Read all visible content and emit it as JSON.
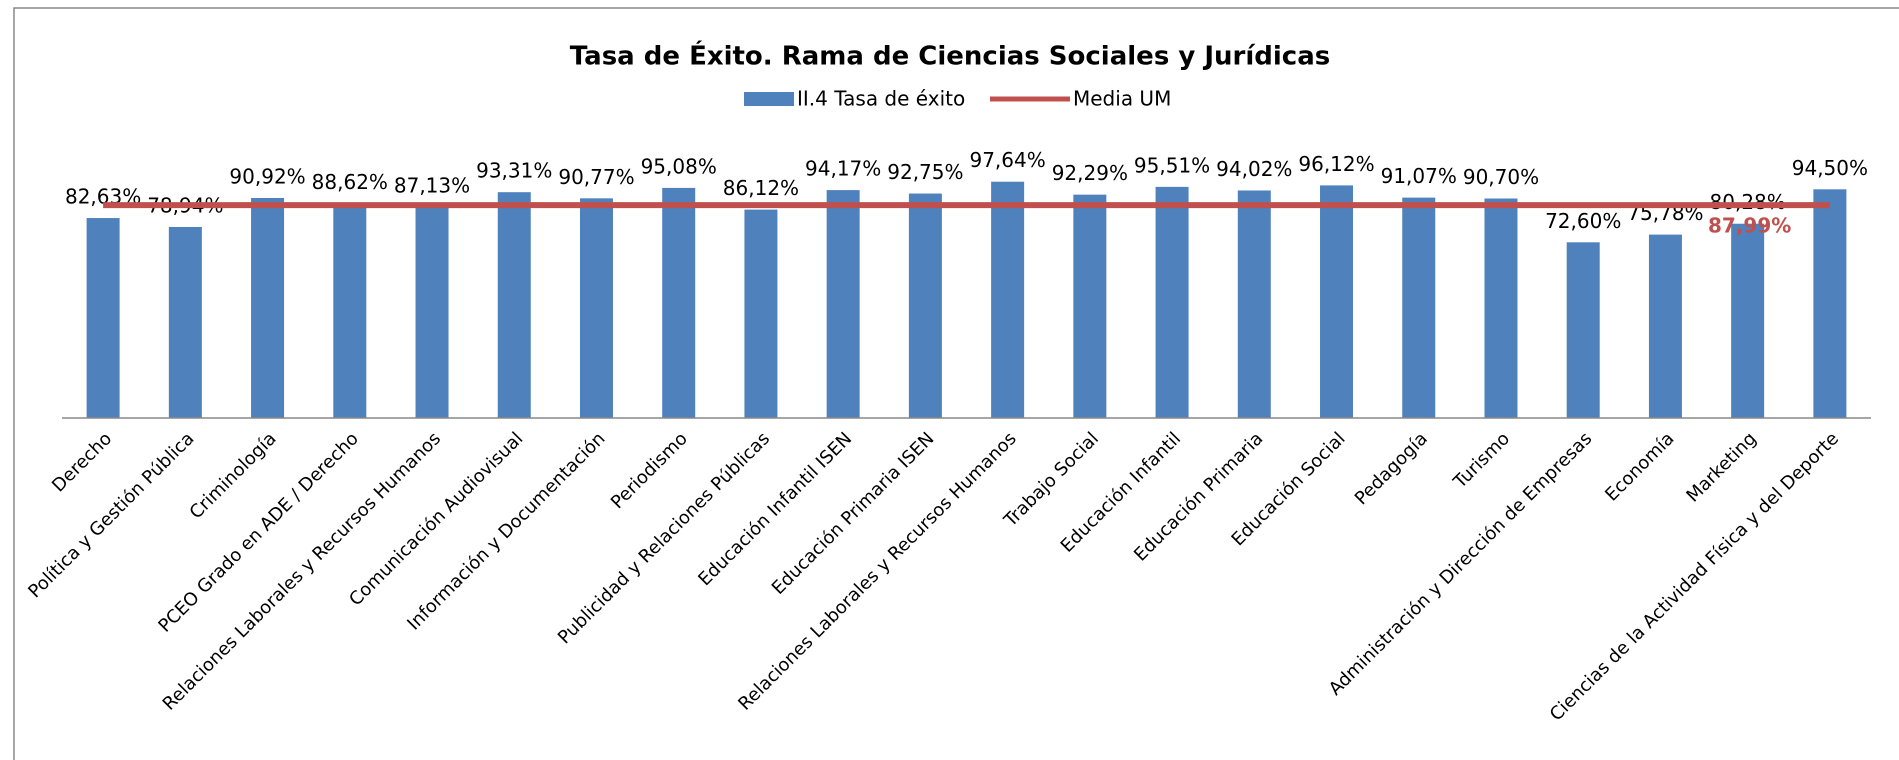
{
  "chart_data": {
    "type": "bar",
    "title": "Tasa de Éxito. Rama de Ciencias Sociales y Jurídicas",
    "categories": [
      "Derecho",
      "Política y Gestión Pública",
      "Criminología",
      "PCEO Grado en ADE / Derecho",
      "Relaciones Laborales y Recursos Humanos",
      "Comunicación Audiovisual",
      "Información y Documentación",
      "Periodismo",
      "Publicidad y Relaciones Públicas",
      "Educación Infantil ISEN",
      "Educación Primaria ISEN",
      "Relaciones Laborales y Recursos Humanos",
      "Trabajo Social",
      "Educación Infantil",
      "Educación Primaria",
      "Educación Social",
      "Pedagogía",
      "Turismo",
      "Administración y Dirección de Empresas",
      "Economía",
      "Marketing",
      "Ciencias de la Actividad Física y del Deporte"
    ],
    "series": [
      {
        "name": "II.4 Tasa de éxito",
        "color": "#4f81bd",
        "values": [
          82.63,
          78.94,
          90.92,
          88.62,
          87.13,
          93.31,
          90.77,
          95.08,
          86.12,
          94.17,
          92.75,
          97.64,
          92.29,
          95.51,
          94.02,
          96.12,
          91.07,
          90.7,
          72.6,
          75.78,
          80.28,
          94.5
        ],
        "value_labels": [
          "82,63%",
          "78,94%",
          "90,92%",
          "88,62%",
          "87,13%",
          "93,31%",
          "90,77%",
          "95,08%",
          "86,12%",
          "94,17%",
          "92,75%",
          "97,64%",
          "92,29%",
          "95,51%",
          "94,02%",
          "96,12%",
          "91,07%",
          "90,70%",
          "72,60%",
          "75,78%",
          "80,28%",
          "94,50%"
        ]
      },
      {
        "name": "Media UM",
        "color": "#c0504d",
        "type": "line",
        "value": 87.99,
        "value_label": "87,99%"
      }
    ],
    "ylim": [
      0,
      100
    ]
  }
}
